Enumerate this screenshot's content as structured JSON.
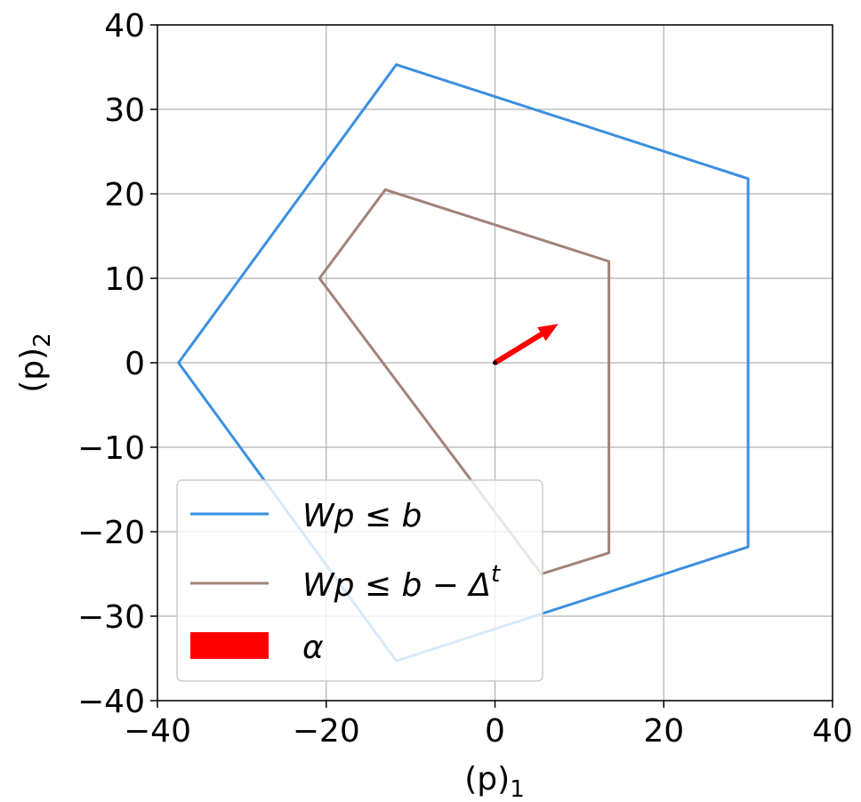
{
  "chart_data": {
    "type": "line",
    "xlabel_var": "(p)",
    "xlabel_sub": "1",
    "ylabel_var": "(p)",
    "ylabel_sub": "2",
    "xlim": [
      -40,
      40
    ],
    "ylim": [
      -40,
      40
    ],
    "xticks": [
      -40,
      -20,
      0,
      20,
      40
    ],
    "yticks": [
      -40,
      -30,
      -20,
      -10,
      0,
      10,
      20,
      30,
      40
    ],
    "xtick_labels": [
      "−40",
      "−20",
      "0",
      "20",
      "40"
    ],
    "ytick_labels": [
      "−40",
      "−30",
      "−20",
      "−10",
      "0",
      "10",
      "20",
      "30",
      "40"
    ],
    "grid": true,
    "legend_position": "lower-left",
    "series": [
      {
        "name": "Wp ≤ b",
        "color": "#3b8fe0",
        "closed": true,
        "points": [
          [
            -11.7,
            35.3
          ],
          [
            30,
            21.8
          ],
          [
            30,
            -21.8
          ],
          [
            -11.7,
            -35.3
          ],
          [
            -37.5,
            0
          ]
        ]
      },
      {
        "name": "Wp ≤ b − Δ^t",
        "color": "#a1837a",
        "closed": true,
        "points": [
          [
            -13,
            20.5
          ],
          [
            13.5,
            12
          ],
          [
            13.5,
            -22.5
          ],
          [
            5.5,
            -25
          ],
          [
            -20.8,
            10
          ]
        ]
      }
    ],
    "arrow": {
      "name": "α",
      "color": "#ff0000",
      "from": [
        0,
        0
      ],
      "to": [
        7.5,
        4.6
      ]
    },
    "legend": [
      {
        "label_main": "Wp ≤ b",
        "label_sup": "",
        "kind": "line",
        "color": "#3b8fe0"
      },
      {
        "label_main": "Wp ≤ b − Δ",
        "label_sup": "t",
        "kind": "line",
        "color": "#a1837a"
      },
      {
        "label_main": "α",
        "label_sup": "",
        "kind": "patch",
        "color": "#ff0000"
      }
    ]
  }
}
